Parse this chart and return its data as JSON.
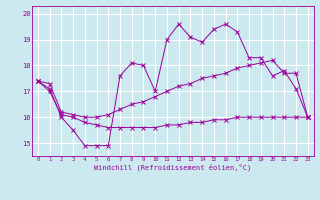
{
  "xlabel": "Windchill (Refroidissement éolien,°C)",
  "xlim": [
    -0.5,
    23.5
  ],
  "ylim": [
    14.5,
    20.3
  ],
  "yticks": [
    15,
    16,
    17,
    18,
    19,
    20
  ],
  "xticks": [
    0,
    1,
    2,
    3,
    4,
    5,
    6,
    7,
    8,
    9,
    10,
    11,
    12,
    13,
    14,
    15,
    16,
    17,
    18,
    19,
    20,
    21,
    22,
    23
  ],
  "background_color": "#cce9f0",
  "grid_color": "#ffffff",
  "line_color": "#990099",
  "line1_x": [
    0,
    1,
    2,
    3,
    4,
    5,
    6,
    7,
    8,
    9,
    10,
    11,
    12,
    13,
    14,
    15,
    16,
    17,
    18,
    19,
    20,
    21,
    22,
    23
  ],
  "line1_y": [
    17.4,
    17.1,
    16.0,
    15.5,
    14.9,
    14.9,
    14.9,
    17.6,
    18.1,
    18.0,
    17.0,
    19.0,
    19.6,
    19.1,
    18.9,
    19.4,
    19.6,
    19.3,
    18.3,
    18.3,
    17.6,
    17.8,
    17.1,
    16.0
  ],
  "line2_x": [
    0,
    1,
    2,
    3,
    4,
    5,
    6,
    7,
    8,
    9,
    10,
    11,
    12,
    13,
    14,
    15,
    16,
    17,
    18,
    19,
    20,
    21,
    22,
    23
  ],
  "line2_y": [
    17.4,
    17.0,
    16.1,
    16.0,
    15.8,
    15.7,
    15.6,
    15.6,
    15.6,
    15.6,
    15.6,
    15.7,
    15.7,
    15.8,
    15.8,
    15.9,
    15.9,
    16.0,
    16.0,
    16.0,
    16.0,
    16.0,
    16.0,
    16.0
  ],
  "line3_x": [
    0,
    1,
    2,
    3,
    4,
    5,
    6,
    7,
    8,
    9,
    10,
    11,
    12,
    13,
    14,
    15,
    16,
    17,
    18,
    19,
    20,
    21,
    22,
    23
  ],
  "line3_y": [
    17.4,
    17.3,
    16.2,
    16.1,
    16.0,
    16.0,
    16.1,
    16.3,
    16.5,
    16.6,
    16.8,
    17.0,
    17.2,
    17.3,
    17.5,
    17.6,
    17.7,
    17.9,
    18.0,
    18.1,
    18.2,
    17.7,
    17.7,
    16.0
  ]
}
